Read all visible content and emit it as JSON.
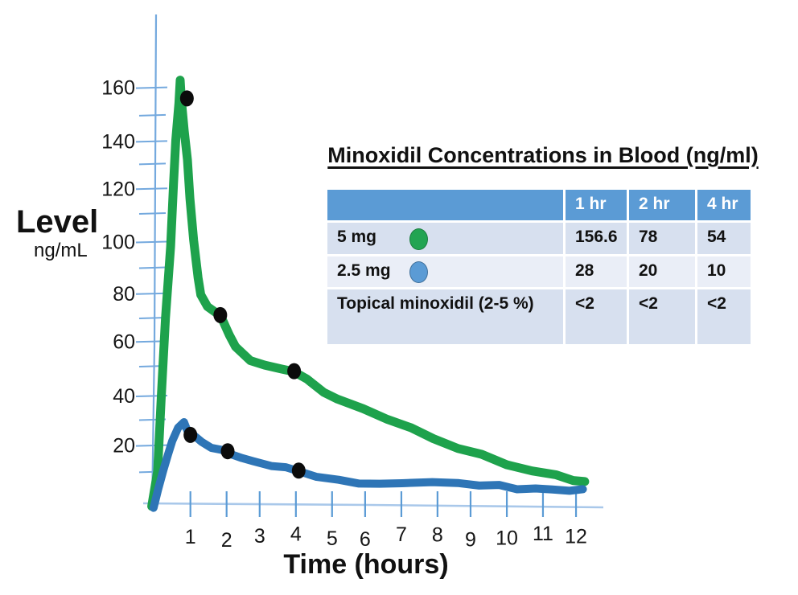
{
  "chart_data": {
    "type": "line",
    "title": "",
    "xlabel": "Time (hours)",
    "ylabel": "Level",
    "ylabel_unit": "ng/mL",
    "xlim": [
      0,
      12.5
    ],
    "ylim": [
      0,
      170
    ],
    "grid": false,
    "x_ticks": [
      1,
      2,
      3,
      4,
      5,
      6,
      7,
      8,
      9,
      10,
      11,
      12
    ],
    "y_major_ticks": [
      20,
      40,
      60,
      80,
      100,
      120,
      140,
      160
    ],
    "y_minor_ticks": [
      10,
      30,
      50,
      70,
      90,
      110,
      130,
      150
    ],
    "axis_colors": {
      "y_axis": "#74a9de",
      "y_tick": "#74a9de",
      "x_tick": "#5b9bd5",
      "x_baseline": "#a9c8ea"
    },
    "series": [
      {
        "name": "5 mg",
        "color": "#1ea24c",
        "stroke_width": 11,
        "points": [
          [
            -0.1,
            -4
          ],
          [
            0.05,
            10
          ],
          [
            0.18,
            38
          ],
          [
            0.3,
            70
          ],
          [
            0.42,
            98
          ],
          [
            0.52,
            122
          ],
          [
            0.6,
            140
          ],
          [
            0.66,
            154
          ],
          [
            0.7,
            163
          ],
          [
            0.76,
            156
          ],
          [
            0.82,
            143
          ],
          [
            0.9,
            132
          ],
          [
            1.0,
            117
          ],
          [
            1.1,
            100
          ],
          [
            1.2,
            86
          ],
          [
            1.3,
            79
          ],
          [
            1.5,
            74
          ],
          [
            1.85,
            71
          ],
          [
            2.1,
            63
          ],
          [
            2.3,
            58.5
          ],
          [
            2.7,
            53.5
          ],
          [
            3.1,
            51
          ],
          [
            3.6,
            50
          ],
          [
            3.95,
            49
          ],
          [
            4.3,
            45.5
          ],
          [
            4.8,
            41
          ],
          [
            5.2,
            38
          ],
          [
            5.9,
            34
          ],
          [
            6.6,
            30.5
          ],
          [
            7.3,
            26.5
          ],
          [
            7.9,
            22.5
          ],
          [
            8.6,
            19
          ],
          [
            9.3,
            16
          ],
          [
            10.0,
            12.5
          ],
          [
            10.7,
            10
          ],
          [
            11.4,
            8
          ],
          [
            11.9,
            6.5
          ],
          [
            12.2,
            5.6
          ]
        ]
      },
      {
        "name": "2.5 mg",
        "color": "#2e75b6",
        "stroke_width": 10,
        "points": [
          [
            -0.05,
            -5
          ],
          [
            0.1,
            3
          ],
          [
            0.22,
            10
          ],
          [
            0.35,
            16
          ],
          [
            0.5,
            22
          ],
          [
            0.65,
            26.5
          ],
          [
            0.8,
            29
          ],
          [
            0.95,
            25
          ],
          [
            1.1,
            23.5
          ],
          [
            1.3,
            21.5
          ],
          [
            1.6,
            19
          ],
          [
            1.9,
            17.8
          ],
          [
            2.1,
            17
          ],
          [
            2.45,
            14.8
          ],
          [
            2.8,
            13.5
          ],
          [
            3.3,
            12.2
          ],
          [
            3.7,
            11
          ],
          [
            4.1,
            9.8
          ],
          [
            4.6,
            7.8
          ],
          [
            5.2,
            6
          ],
          [
            5.8,
            5.2
          ],
          [
            6.4,
            4.9
          ],
          [
            7.0,
            4.7
          ],
          [
            7.45,
            5.7
          ],
          [
            7.9,
            5.3
          ],
          [
            8.6,
            5.0
          ],
          [
            9.2,
            4.5
          ],
          [
            9.8,
            4.0
          ],
          [
            10.3,
            2.8
          ],
          [
            10.8,
            3.2
          ],
          [
            11.3,
            2.2
          ],
          [
            11.8,
            2.4
          ],
          [
            12.15,
            2.7
          ]
        ]
      }
    ],
    "markers": [
      {
        "series": "5 mg",
        "color": "#0b0b0b",
        "points": [
          [
            0.9,
            156
          ],
          [
            1.85,
            71
          ],
          [
            3.95,
            49
          ]
        ]
      },
      {
        "series": "2.5 mg",
        "color": "#0b0b0b",
        "points": [
          [
            1.0,
            24
          ],
          [
            2.06,
            17.6
          ],
          [
            4.08,
            10
          ]
        ]
      }
    ]
  },
  "table": {
    "title": "Minoxidil Concentrations in Blood (ng/ml)",
    "header_bg": "#5b9bd5",
    "row_bg_odd": "#d7e0ef",
    "row_bg_even": "#eaeef7",
    "columns": [
      "",
      "1 hr",
      "2 hr",
      "4 hr"
    ],
    "rows": [
      {
        "label": "5 mg",
        "swatch_color": "#22a452",
        "swatch_border": "#1c7e40",
        "values": [
          "156.6",
          "78",
          "54"
        ]
      },
      {
        "label": "2.5 mg",
        "swatch_color": "#5b9bd5",
        "swatch_border": "#41719c",
        "values": [
          "28",
          "20",
          "10"
        ]
      },
      {
        "label": "Topical minoxidil (2-5 %)",
        "swatch_color": null,
        "swatch_border": null,
        "values": [
          "<2",
          "<2",
          "<2"
        ]
      }
    ]
  }
}
